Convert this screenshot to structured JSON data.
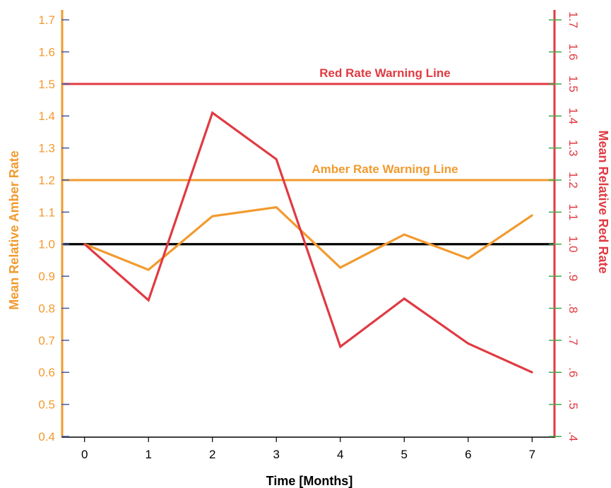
{
  "chart_data": {
    "type": "line",
    "xlabel": "Time [Months]",
    "ylabel_left": "Mean Relative Amber Rate",
    "ylabel_right": "Mean Relative Red Rate",
    "x": [
      0,
      1,
      2,
      3,
      4,
      5,
      6,
      7
    ],
    "x_tick_labels": [
      "0",
      "1",
      "2",
      "3",
      "4",
      "5",
      "6",
      "7"
    ],
    "xlim": [
      -0.35,
      7.35
    ],
    "ylim_left": [
      0.4,
      1.72
    ],
    "ylim_right": [
      0.4,
      1.72
    ],
    "y_ticks_left": [
      0.4,
      0.5,
      0.6,
      0.7,
      0.8,
      0.9,
      1.0,
      1.1,
      1.2,
      1.3,
      1.4,
      1.5,
      1.6,
      1.7
    ],
    "y_tick_labels_left": [
      "0.4",
      "0.5",
      "0.6",
      "0.7",
      "0.8",
      "0.9",
      "1.0",
      "1.1",
      "1.2",
      "1.3",
      "1.4",
      "1.5",
      "1.6",
      "1.7"
    ],
    "y_ticks_right": [
      0.4,
      0.5,
      0.6,
      0.7,
      0.8,
      0.9,
      1.0,
      1.1,
      1.2,
      1.3,
      1.4,
      1.5,
      1.6,
      1.7
    ],
    "y_tick_labels_right": [
      ".4",
      ".5",
      ".6",
      ".7",
      ".8",
      ".9",
      "1.0",
      "1.1",
      "1.2",
      "1.3",
      "1.4",
      "1.5",
      "1.6",
      "1.7"
    ],
    "series": [
      {
        "name": "Amber",
        "axis": "left",
        "color": "#F29A2E",
        "values": [
          1.0,
          0.92,
          1.087,
          1.115,
          0.927,
          1.03,
          0.955,
          1.09
        ]
      },
      {
        "name": "Red",
        "axis": "right",
        "color": "#E03A42",
        "values": [
          1.0,
          0.825,
          1.41,
          1.265,
          0.68,
          0.83,
          0.69,
          0.6
        ]
      }
    ],
    "reference_lines": [
      {
        "label": "Red Rate Warning Line",
        "y": 1.5,
        "color": "#E03A42"
      },
      {
        "label": "Amber Rate Warning Line",
        "y": 1.2,
        "color": "#F29A2E"
      },
      {
        "label": "",
        "y": 1.0,
        "color": "#000000"
      }
    ],
    "grid": false,
    "legend": "none"
  },
  "colors": {
    "amber": "#F29A2E",
    "red": "#E03A42",
    "left_tick_mark": "#3B5BA9",
    "right_tick_mark": "#3DAA4A",
    "baseline": "#000000"
  }
}
